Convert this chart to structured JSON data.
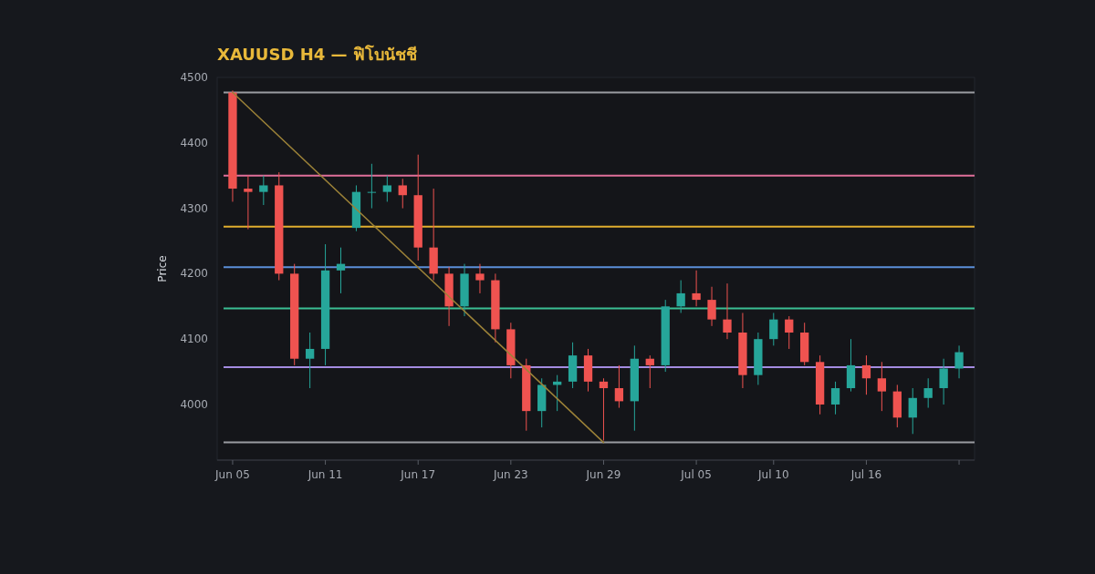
{
  "chart_data": {
    "type": "candlestick",
    "title": "XAUUSD H4 — ฟิโบนัชชี",
    "ylabel": "Price",
    "x": [
      "--06-05",
      "--06-06",
      "--06-07",
      "--06-08",
      "--06-09",
      "--06-10",
      "--06-11",
      "--06-12",
      "--06-13",
      "--06-14",
      "--06-15",
      "--06-16",
      "--06-17",
      "--06-18",
      "--06-19",
      "--06-20",
      "--06-21",
      "--06-22",
      "--06-23",
      "--06-24",
      "--06-25",
      "--06-26",
      "--06-27",
      "--06-28",
      "--06-29",
      "--06-30",
      "--07-01",
      "--07-02",
      "--07-03",
      "--07-04",
      "--07-05",
      "--07-06",
      "--07-07",
      "--07-08",
      "--07-09",
      "--07-10",
      "--07-11",
      "--07-12",
      "--07-13",
      "--07-14",
      "--07-15",
      "--07-16",
      "--07-17",
      "--07-18",
      "--07-19",
      "--07-20",
      "--07-21",
      "--07-22"
    ],
    "ohlc": [
      [
        4477,
        4480,
        4310,
        4330
      ],
      [
        4330,
        4350,
        4268,
        4325
      ],
      [
        4325,
        4350,
        4305,
        4335
      ],
      [
        4335,
        4355,
        4190,
        4200
      ],
      [
        4200,
        4215,
        4060,
        4070
      ],
      [
        4070,
        4110,
        4025,
        4085
      ],
      [
        4085,
        4245,
        4060,
        4205
      ],
      [
        4205,
        4240,
        4170,
        4215
      ],
      [
        4270,
        4335,
        4265,
        4325
      ],
      [
        4325,
        4368,
        4300,
        4325
      ],
      [
        4325,
        4350,
        4310,
        4335
      ],
      [
        4335,
        4345,
        4300,
        4320
      ],
      [
        4320,
        4382,
        4220,
        4240
      ],
      [
        4240,
        4330,
        4190,
        4200
      ],
      [
        4200,
        4210,
        4120,
        4150
      ],
      [
        4150,
        4215,
        4135,
        4200
      ],
      [
        4200,
        4215,
        4170,
        4190
      ],
      [
        4190,
        4200,
        4095,
        4115
      ],
      [
        4115,
        4125,
        4040,
        4060
      ],
      [
        4060,
        4070,
        3960,
        3990
      ],
      [
        3990,
        4040,
        3965,
        4030
      ],
      [
        4030,
        4045,
        3990,
        4035
      ],
      [
        4035,
        4095,
        4025,
        4075
      ],
      [
        4075,
        4085,
        4020,
        4035
      ],
      [
        4035,
        4040,
        3945,
        4025
      ],
      [
        4025,
        4060,
        3995,
        4005
      ],
      [
        4005,
        4090,
        3960,
        4070
      ],
      [
        4070,
        4075,
        4025,
        4060
      ],
      [
        4060,
        4160,
        4050,
        4150
      ],
      [
        4150,
        4190,
        4140,
        4170
      ],
      [
        4170,
        4205,
        4150,
        4160
      ],
      [
        4160,
        4180,
        4120,
        4130
      ],
      [
        4130,
        4185,
        4100,
        4110
      ],
      [
        4110,
        4140,
        4025,
        4045
      ],
      [
        4045,
        4110,
        4030,
        4100
      ],
      [
        4100,
        4140,
        4090,
        4130
      ],
      [
        4130,
        4135,
        4085,
        4110
      ],
      [
        4110,
        4125,
        4060,
        4065
      ],
      [
        4065,
        4075,
        3985,
        4000
      ],
      [
        4000,
        4035,
        3985,
        4025
      ],
      [
        4025,
        4100,
        4020,
        4060
      ],
      [
        4060,
        4075,
        4015,
        4040
      ],
      [
        4040,
        4065,
        3990,
        4020
      ],
      [
        4020,
        4030,
        3965,
        3980
      ],
      [
        3980,
        4025,
        3955,
        4010
      ],
      [
        4010,
        4040,
        3995,
        4025
      ],
      [
        4025,
        4070,
        4000,
        4055
      ],
      [
        4055,
        4090,
        4040,
        4080
      ]
    ],
    "colors": [
      "#ef5350",
      "#ef5350",
      "#26a69a",
      "#ef5350",
      "#ef5350",
      "#26a69a",
      "#26a69a",
      "#26a69a",
      "#26a69a",
      "#26a69a",
      "#26a69a",
      "#ef5350",
      "#ef5350",
      "#ef5350",
      "#ef5350",
      "#26a69a",
      "#ef5350",
      "#ef5350",
      "#ef5350",
      "#ef5350",
      "#26a69a",
      "#26a69a",
      "#26a69a",
      "#ef5350",
      "#ef5350",
      "#ef5350",
      "#26a69a",
      "#ef5350",
      "#26a69a",
      "#26a69a",
      "#ef5350",
      "#ef5350",
      "#ef5350",
      "#ef5350",
      "#26a69a",
      "#26a69a",
      "#ef5350",
      "#ef5350",
      "#ef5350",
      "#26a69a",
      "#26a69a",
      "#ef5350",
      "#ef5350",
      "#ef5350",
      "#26a69a",
      "#26a69a",
      "#26a69a",
      "#26a69a"
    ],
    "series": [
      {
        "type": "line",
        "x": [
          "--06-05",
          "--06-29"
        ],
        "values": [
          4477,
          3942
        ],
        "color": "#9c8238"
      }
    ],
    "ref_lines": [
      {
        "axis": "y",
        "value": 4477,
        "color": "#9a9ca1"
      },
      {
        "axis": "y",
        "value": 4350,
        "color": "#e06f9a"
      },
      {
        "axis": "y",
        "value": 4272,
        "color": "#e0ae2e"
      },
      {
        "axis": "y",
        "value": 4210,
        "color": "#5b8fd9"
      },
      {
        "axis": "y",
        "value": 4147,
        "color": "#3bbf94"
      },
      {
        "axis": "y",
        "value": 4057,
        "color": "#a48be0"
      },
      {
        "axis": "y",
        "value": 3942,
        "color": "#9a9ca1"
      }
    ],
    "xlim": [
      "--06-04",
      "--07-23"
    ],
    "xticks": [
      {
        "value": "--06-05",
        "label": "Jun 05"
      },
      {
        "value": "--06-11",
        "label": "Jun 11"
      },
      {
        "value": "--06-17",
        "label": "Jun 17"
      },
      {
        "value": "--06-23",
        "label": "Jun 23"
      },
      {
        "value": "--06-29",
        "label": "Jun 29"
      },
      {
        "value": "--07-05",
        "label": "Jul 05"
      },
      {
        "value": "--07-10",
        "label": "Jul 10"
      },
      {
        "value": "--07-16",
        "label": "Jul 16"
      },
      {
        "value": "--07-22",
        "label": null
      }
    ],
    "ylim": [
      3915,
      4500
    ],
    "yticks": [
      4000,
      4100,
      4200,
      4300,
      4400,
      4500
    ],
    "grid": false
  }
}
